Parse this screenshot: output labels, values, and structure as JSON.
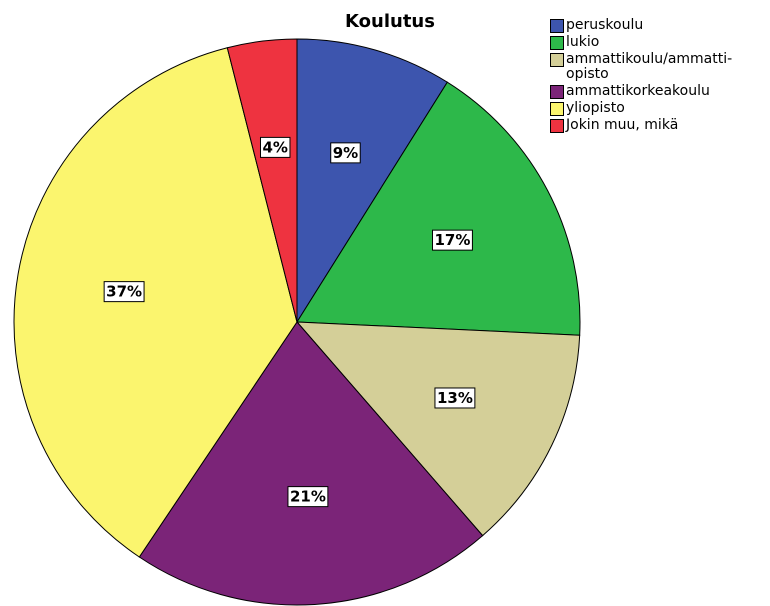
{
  "chart_data": {
    "type": "pie",
    "title": "Koulutus",
    "categories": [
      "peruskoulu",
      "lukio",
      "ammattikoulu/ammatti-opisto",
      "ammattikorkeakoulu",
      "yliopisto",
      "Jokin muu, mikä"
    ],
    "values": [
      9,
      17,
      13,
      21,
      37,
      4
    ],
    "value_labels": [
      "9%",
      "17%",
      "13%",
      "21%",
      "37%",
      "4%"
    ],
    "colors": [
      "#3d55ae",
      "#2db84a",
      "#d4cf98",
      "#7b2478",
      "#fbf56e",
      "#ee3340"
    ]
  }
}
